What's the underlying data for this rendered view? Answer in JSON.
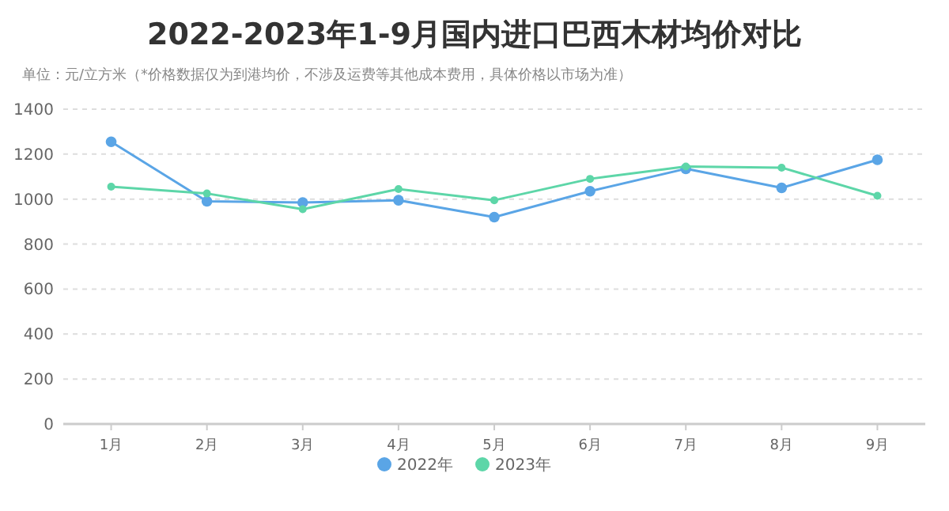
{
  "chart_data": {
    "type": "line",
    "title": "2022-2023年1-9月国内进口巴西木材均价对比",
    "annotations": [
      "单位：元/立方米（*价格数据仅为到港均价，不涉及运费等其他成本费用，具体价格以市场为准）"
    ],
    "categories": [
      "1月",
      "2月",
      "3月",
      "4月",
      "5月",
      "6月",
      "7月",
      "8月",
      "9月"
    ],
    "series": [
      {
        "name": "2022年",
        "color": "#5aa5e6",
        "values": [
          1255,
          990,
          985,
          995,
          920,
          1035,
          1135,
          1050,
          1175
        ]
      },
      {
        "name": "2023年",
        "color": "#5dd6a8",
        "values": [
          1055,
          1025,
          955,
          1045,
          995,
          1090,
          1145,
          1140,
          1015
        ]
      }
    ],
    "ylim": [
      0,
      1400
    ],
    "yticks": [
      0,
      200,
      400,
      600,
      800,
      1000,
      1200,
      1400
    ],
    "grid": "y",
    "legend": "bottom",
    "marker": "circle",
    "line_style": "solid"
  }
}
